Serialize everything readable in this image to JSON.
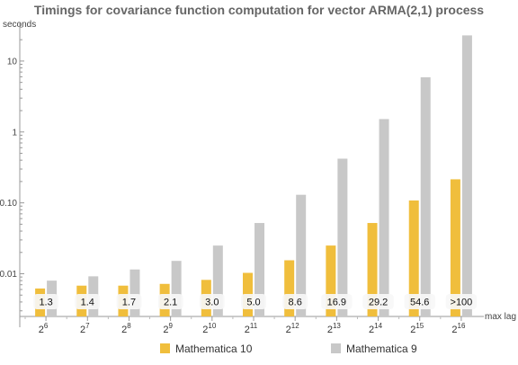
{
  "chart_data": {
    "type": "bar",
    "title": "Timings for covariance function computation for vector ARMA(2,1) process",
    "ylabel": "seconds",
    "xlabel": "max lag",
    "yscale": "log",
    "ylim": [
      0.0025,
      35
    ],
    "yticks": [
      {
        "value": 0.01,
        "label": "0.01"
      },
      {
        "value": 0.1,
        "label": "0.10"
      },
      {
        "value": 1,
        "label": "1"
      },
      {
        "value": 10,
        "label": "10"
      }
    ],
    "categories": [
      {
        "base": "2",
        "exp": "6"
      },
      {
        "base": "2",
        "exp": "7"
      },
      {
        "base": "2",
        "exp": "8"
      },
      {
        "base": "2",
        "exp": "9"
      },
      {
        "base": "2",
        "exp": "10"
      },
      {
        "base": "2",
        "exp": "11"
      },
      {
        "base": "2",
        "exp": "12"
      },
      {
        "base": "2",
        "exp": "13"
      },
      {
        "base": "2",
        "exp": "14"
      },
      {
        "base": "2",
        "exp": "15"
      },
      {
        "base": "2",
        "exp": "16"
      }
    ],
    "series": [
      {
        "name": "Mathematica 10",
        "color": "#f0be3c",
        "values": [
          0.0062,
          0.0068,
          0.0068,
          0.0072,
          0.0082,
          0.0103,
          0.0155,
          0.025,
          0.052,
          0.108,
          0.215
        ]
      },
      {
        "name": "Mathematica 9",
        "color": "#c8c8c8",
        "values": [
          0.008,
          0.0092,
          0.0115,
          0.0152,
          0.025,
          0.052,
          0.13,
          0.42,
          1.52,
          5.9,
          23.0
        ]
      }
    ],
    "ratio_labels": [
      "1.3",
      "1.4",
      "1.7",
      "2.1",
      "3.0",
      "5.0",
      "8.6",
      "16.9",
      "29.2",
      "54.6",
      ">100"
    ],
    "legend_position": "bottom",
    "grid": false
  }
}
